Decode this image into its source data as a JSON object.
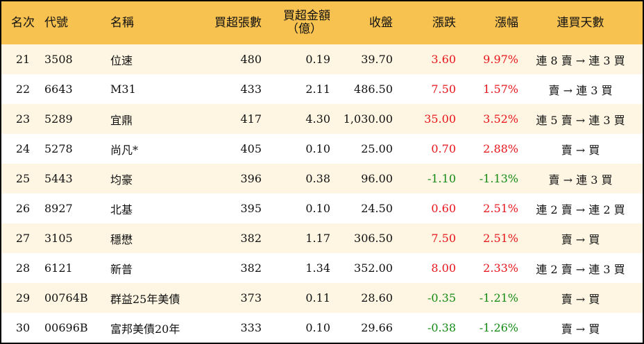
{
  "headers": [
    "名次",
    "代號",
    "名稱",
    "買超張數",
    "買超金額（億）",
    "收盤",
    "漲跌",
    "漲幅",
    "連買天數"
  ],
  "header_amount_line1": "買超金額",
  "header_amount_line2": "（億）",
  "colors": {
    "header_bg": "#F8C251",
    "stripe": "#FEF6E3",
    "up": "#E8141B",
    "down": "#148A14"
  },
  "rows": [
    {
      "rank": "21",
      "code": "3508",
      "name": "位速",
      "shares": "480",
      "amount": "0.19",
      "close": "39.70",
      "change": "3.60",
      "pct": "9.97%",
      "dir": "up",
      "streak": "連 8 賣 → 連 3 買"
    },
    {
      "rank": "22",
      "code": "6643",
      "name": "M31",
      "shares": "433",
      "amount": "2.11",
      "close": "486.50",
      "change": "7.50",
      "pct": "1.57%",
      "dir": "up",
      "streak": "賣 → 連 3 買"
    },
    {
      "rank": "23",
      "code": "5289",
      "name": "宜鼎",
      "shares": "417",
      "amount": "4.30",
      "close": "1,030.00",
      "change": "35.00",
      "pct": "3.52%",
      "dir": "up",
      "streak": "連 5 賣 → 連 3 買"
    },
    {
      "rank": "24",
      "code": "5278",
      "name": "尚凡*",
      "shares": "405",
      "amount": "0.10",
      "close": "25.00",
      "change": "0.70",
      "pct": "2.88%",
      "dir": "up",
      "streak": "賣 → 買"
    },
    {
      "rank": "25",
      "code": "5443",
      "name": "均豪",
      "shares": "396",
      "amount": "0.38",
      "close": "96.00",
      "change": "-1.10",
      "pct": "-1.13%",
      "dir": "down",
      "streak": "賣 → 連 3 買"
    },
    {
      "rank": "26",
      "code": "8927",
      "name": "北基",
      "shares": "395",
      "amount": "0.10",
      "close": "24.50",
      "change": "0.60",
      "pct": "2.51%",
      "dir": "up",
      "streak": "連 2 賣 → 連 2 買"
    },
    {
      "rank": "27",
      "code": "3105",
      "name": "穩懋",
      "shares": "382",
      "amount": "1.17",
      "close": "306.50",
      "change": "7.50",
      "pct": "2.51%",
      "dir": "up",
      "streak": "賣 → 買"
    },
    {
      "rank": "28",
      "code": "6121",
      "name": "新普",
      "shares": "382",
      "amount": "1.34",
      "close": "352.00",
      "change": "8.00",
      "pct": "2.33%",
      "dir": "up",
      "streak": "連 2 賣 → 連 3 買"
    },
    {
      "rank": "29",
      "code": "00764B",
      "name": "群益25年美債",
      "shares": "373",
      "amount": "0.11",
      "close": "28.60",
      "change": "-0.35",
      "pct": "-1.21%",
      "dir": "down",
      "streak": "賣 → 買"
    },
    {
      "rank": "30",
      "code": "00696B",
      "name": "富邦美債20年",
      "shares": "333",
      "amount": "0.10",
      "close": "29.66",
      "change": "-0.38",
      "pct": "-1.26%",
      "dir": "down",
      "streak": "賣 → 買"
    }
  ]
}
